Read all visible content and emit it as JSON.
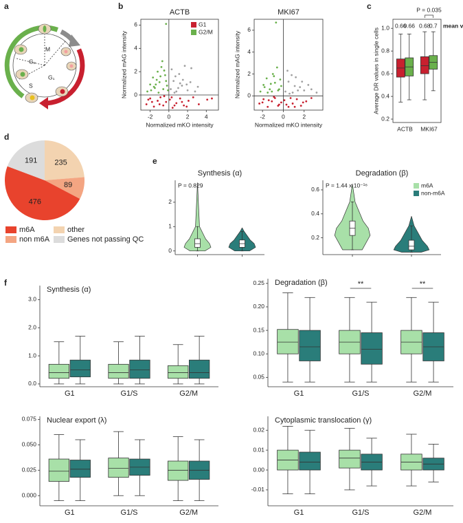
{
  "panel_labels": [
    "a",
    "b",
    "c",
    "d",
    "e",
    "f"
  ],
  "diagram": {
    "phases": [
      "M",
      "G₂",
      "S",
      "G₁"
    ]
  },
  "chart_data": [
    {
      "type": "scatter",
      "title": "ACTB",
      "x_label": "Normalized mKO intensity",
      "y_label": "Normalized mAG intensity",
      "xlim": [
        -3,
        5.3
      ],
      "ylim": [
        -1.3,
        6.5
      ],
      "xticks": [
        -2,
        0,
        2,
        4
      ],
      "yticks": [
        0,
        2,
        4,
        6
      ],
      "legend": "upper right",
      "series": [
        {
          "name": "G1",
          "color": "#c8202f",
          "x": [
            -2.4,
            -2.0,
            -1.6,
            -1.2,
            -0.9,
            -0.6,
            -0.3,
            0.1,
            0.4,
            0.8,
            1.2,
            1.6,
            2.1,
            2.6,
            3.2,
            4.1,
            -1.8,
            -0.5,
            0.6,
            1.9,
            -2.2,
            -1.0,
            0.3,
            1.4,
            4.6
          ],
          "values": [
            -0.8,
            -0.3,
            -1.0,
            -0.5,
            -0.2,
            -0.9,
            -0.6,
            -0.4,
            -1.1,
            -0.7,
            -0.3,
            -0.9,
            -0.5,
            -0.2,
            -0.8,
            -0.4,
            -0.6,
            -0.1,
            -0.9,
            -1.0,
            -0.4,
            -0.8,
            -0.2,
            -0.6,
            -0.3
          ]
        },
        {
          "name": "G2/M",
          "color": "#6ab04c",
          "x": [
            -2.3,
            -2.0,
            -1.7,
            -1.5,
            -1.2,
            -1.0,
            -0.8,
            -0.6,
            -0.4,
            -0.2,
            -1.9,
            -1.3,
            -0.7,
            -0.3,
            -1.6,
            -1.1,
            -0.5,
            -0.9,
            -1.4,
            -0.1,
            -0.3
          ],
          "values": [
            0.3,
            0.9,
            1.5,
            0.6,
            2.0,
            1.1,
            2.4,
            0.5,
            1.7,
            0.8,
            0.4,
            1.3,
            2.9,
            1.2,
            0.7,
            0.2,
            2.1,
            1.6,
            0.9,
            0.4,
            6.1
          ]
        },
        {
          "color": "#a0a0a0",
          "x": [
            0.2,
            0.5,
            0.8,
            1.1,
            1.4,
            1.7,
            2.0,
            2.3,
            0.3,
            0.7,
            1.0,
            1.5,
            1.9,
            2.4,
            0.6,
            1.2,
            3.1,
            2.8
          ],
          "values": [
            0.5,
            1.2,
            0.3,
            1.8,
            0.8,
            2.5,
            0.4,
            1.1,
            2.2,
            1.6,
            0.6,
            1.3,
            0.9,
            2.3,
            0.2,
            1.0,
            0.7,
            0.3
          ]
        }
      ]
    },
    {
      "type": "scatter",
      "title": "MKI67",
      "x_label": "Normalized mKO intensity",
      "y_label": "Normalized mAG intensity",
      "xlim": [
        -2.8,
        3.8
      ],
      "ylim": [
        -1.3,
        7
      ],
      "xticks": [
        -2,
        0,
        2
      ],
      "yticks": [
        0,
        2,
        4,
        6
      ],
      "series": [
        {
          "color": "#c8202f",
          "x": [
            -2.3,
            -1.9,
            -1.5,
            -1.1,
            -0.8,
            -0.5,
            -0.2,
            0.1,
            0.5,
            0.9,
            1.3,
            1.7,
            2.2,
            2.7,
            -2.0,
            -0.9,
            0.3,
            1.1,
            -1.4,
            0.7,
            1.9,
            -0.4
          ],
          "values": [
            -0.7,
            -0.3,
            -1.0,
            -0.5,
            -0.2,
            -0.9,
            -0.6,
            -0.4,
            -1.0,
            -0.7,
            -0.3,
            -0.9,
            -0.5,
            -0.2,
            -0.6,
            -0.1,
            -0.8,
            -1.0,
            -0.4,
            -0.2,
            -0.6,
            -0.8
          ]
        },
        {
          "color": "#6ab04c",
          "x": [
            -2.2,
            -1.9,
            -1.6,
            -1.3,
            -1.0,
            -0.8,
            -0.5,
            -0.3,
            -1.8,
            -1.2,
            -0.6,
            -0.2,
            -1.5,
            -0.9,
            -0.4,
            -1.1,
            -0.7
          ],
          "values": [
            0.4,
            1.0,
            1.6,
            0.6,
            2.0,
            1.2,
            0.5,
            1.5,
            0.8,
            1.1,
            2.6,
            0.9,
            0.3,
            1.8,
            0.6,
            0.4,
            6.7
          ]
        },
        {
          "color": "#a0a0a0",
          "x": [
            0.2,
            0.5,
            0.9,
            1.2,
            1.6,
            2.0,
            2.4,
            0.4,
            0.8,
            1.4,
            1.8,
            2.7,
            0.6,
            1.1,
            3.2
          ],
          "values": [
            0.4,
            1.3,
            0.3,
            1.7,
            0.8,
            0.5,
            1.0,
            2.3,
            1.9,
            0.5,
            1.3,
            0.6,
            0.2,
            0.9,
            0.3
          ]
        }
      ]
    },
    {
      "type": "box",
      "y_label": "Average DR values in single cells",
      "categories": [
        "ACTB",
        "MKI67"
      ],
      "ylim": [
        0.17,
        1.08
      ],
      "yticks": [
        0.2,
        0.4,
        0.6,
        0.8,
        {
          "value": 1,
          "label": "1.0"
        }
      ],
      "annotation": "P = 0.035",
      "means_label": "mean values",
      "series": [
        {
          "color": "#c8202f",
          "means": [
            0.66,
            0.68
          ],
          "boxes": [
            {
              "low": 0.35,
              "q1": 0.57,
              "median": 0.65,
              "q3": 0.73,
              "high": 0.95
            },
            {
              "low": 0.37,
              "q1": 0.6,
              "median": 0.67,
              "q3": 0.75,
              "high": 0.97
            }
          ]
        },
        {
          "color": "#6ab04c",
          "means": [
            0.66,
            0.7
          ],
          "boxes": [
            {
              "low": 0.37,
              "q1": 0.58,
              "median": 0.66,
              "q3": 0.74,
              "high": 0.95
            },
            {
              "low": 0.45,
              "q1": 0.64,
              "median": 0.7,
              "q3": 0.76,
              "high": 0.97
            }
          ]
        }
      ]
    },
    {
      "type": "pie",
      "categories": [
        "other",
        "non m6A",
        "m6A",
        "Genes not passing QC"
      ],
      "values": [
        235,
        89,
        476,
        191
      ],
      "colors": [
        "#f3d3b0",
        "#f4a582",
        "#e8432d",
        "#dcdcdc"
      ]
    },
    {
      "type": "violin",
      "title": "Synthesis (α)",
      "annotation": "P = 0.829",
      "ylim": [
        -0.15,
        2.9
      ],
      "yticks": [
        0,
        1,
        2
      ],
      "series": [
        {
          "color": "#a8e0a8",
          "extent": [
            0,
            2.8
          ],
          "box": {
            "low": 0,
            "q1": 0.15,
            "median": 0.3,
            "q3": 0.5,
            "high": 1.0
          }
        },
        {
          "color": "#2a7d7a",
          "extent": [
            0,
            0.95
          ],
          "box": {
            "low": 0,
            "q1": 0.15,
            "median": 0.3,
            "q3": 0.45,
            "high": 0.8
          }
        }
      ]
    },
    {
      "type": "violin",
      "title": "Degradation (β)",
      "annotation": "P = 1.44 x 10⁻¹⁶",
      "ylim": [
        0.06,
        0.68
      ],
      "yticks": [
        0.2,
        0.4,
        0.6
      ],
      "legend": "upper right",
      "series": [
        {
          "name": "m6A",
          "color": "#a8e0a8",
          "extent": [
            0.1,
            0.65
          ],
          "box": {
            "low": 0.1,
            "q1": 0.22,
            "median": 0.28,
            "q3": 0.34,
            "high": 0.5
          }
        },
        {
          "name": "non-m6A",
          "color": "#2a7d7a",
          "extent": [
            0.08,
            0.38
          ],
          "box": {
            "low": 0.08,
            "q1": 0.1,
            "median": 0.13,
            "q3": 0.18,
            "high": 0.3
          }
        }
      ]
    },
    {
      "type": "box",
      "title": "Synthesis (α)",
      "categories": [
        "G1",
        "G1/S",
        "G2/M"
      ],
      "ylim": [
        -0.1,
        3.5
      ],
      "yticks": [
        {
          "value": 0,
          "label": "0.0"
        },
        {
          "value": 1,
          "label": "1.0"
        },
        {
          "value": 2,
          "label": "2.0"
        },
        {
          "value": 3,
          "label": "3.0"
        }
      ],
      "series": [
        {
          "color": "#a8e0a8",
          "boxes": [
            {
              "low": 0,
              "q1": 0.2,
              "median": 0.4,
              "q3": 0.7,
              "high": 1.5
            },
            {
              "low": 0,
              "q1": 0.2,
              "median": 0.4,
              "q3": 0.7,
              "high": 1.5
            },
            {
              "low": 0,
              "q1": 0.2,
              "median": 0.4,
              "q3": 0.65,
              "high": 1.4
            }
          ]
        },
        {
          "color": "#2a7d7a",
          "boxes": [
            {
              "low": 0,
              "q1": 0.25,
              "median": 0.5,
              "q3": 0.85,
              "high": 1.7
            },
            {
              "low": 0,
              "q1": 0.2,
              "median": 0.5,
              "q3": 0.85,
              "high": 1.7
            },
            {
              "low": 0,
              "q1": 0.2,
              "median": 0.4,
              "q3": 0.85,
              "high": 1.7
            }
          ]
        }
      ]
    },
    {
      "type": "box",
      "title": "Degradation (β)",
      "categories": [
        "G1",
        "G1/S",
        "G2/M"
      ],
      "ylim": [
        0.03,
        0.26
      ],
      "yticks": [
        0.05,
        {
          "value": 0.1,
          "label": "0.10"
        },
        0.15,
        {
          "value": 0.2,
          "label": "0.20"
        },
        0.25
      ],
      "significance": [
        null,
        "**",
        "**"
      ],
      "series": [
        {
          "color": "#a8e0a8",
          "boxes": [
            {
              "low": 0.04,
              "q1": 0.1,
              "median": 0.125,
              "q3": 0.152,
              "high": 0.23
            },
            {
              "low": 0.04,
              "q1": 0.1,
              "median": 0.125,
              "q3": 0.15,
              "high": 0.22
            },
            {
              "low": 0.04,
              "q1": 0.1,
              "median": 0.125,
              "q3": 0.15,
              "high": 0.22
            }
          ]
        },
        {
          "color": "#2a7d7a",
          "boxes": [
            {
              "low": 0.04,
              "q1": 0.085,
              "median": 0.115,
              "q3": 0.15,
              "high": 0.22
            },
            {
              "low": 0.04,
              "q1": 0.078,
              "median": 0.11,
              "q3": 0.145,
              "high": 0.21
            },
            {
              "low": 0.04,
              "q1": 0.085,
              "median": 0.115,
              "q3": 0.145,
              "high": 0.21
            }
          ]
        }
      ]
    },
    {
      "type": "box",
      "title": "Nuclear export (λ)",
      "categories": [
        "G1",
        "G1/S",
        "G2/M"
      ],
      "ylim": [
        -0.01,
        0.078
      ],
      "yticks": [
        {
          "value": 0,
          "label": "0.000"
        },
        0.025,
        {
          "value": 0.05,
          "label": "0.050"
        },
        0.075
      ],
      "series": [
        {
          "color": "#a8e0a8",
          "boxes": [
            {
              "low": -0.005,
              "q1": 0.014,
              "median": 0.024,
              "q3": 0.036,
              "high": 0.06
            },
            {
              "low": 0,
              "q1": 0.018,
              "median": 0.027,
              "q3": 0.037,
              "high": 0.063
            },
            {
              "low": -0.005,
              "q1": 0.015,
              "median": 0.025,
              "q3": 0.034,
              "high": 0.058
            }
          ]
        },
        {
          "color": "#2a7d7a",
          "boxes": [
            {
              "low": -0.005,
              "q1": 0.018,
              "median": 0.026,
              "q3": 0.035,
              "high": 0.055
            },
            {
              "low": 0,
              "q1": 0.02,
              "median": 0.028,
              "q3": 0.036,
              "high": 0.055
            },
            {
              "low": -0.005,
              "q1": 0.016,
              "median": 0.025,
              "q3": 0.034,
              "high": 0.055
            }
          ]
        }
      ]
    },
    {
      "type": "box",
      "title": "Cytoplasmic translocation (γ)",
      "categories": [
        "G1",
        "G1/S",
        "G2/M"
      ],
      "ylim": [
        -0.018,
        0.027
      ],
      "yticks": [
        -0.01,
        {
          "value": 0,
          "label": "0.00"
        },
        0.01,
        0.02
      ],
      "series": [
        {
          "color": "#a8e0a8",
          "boxes": [
            {
              "low": -0.012,
              "q1": 0,
              "median": 0.005,
              "q3": 0.01,
              "high": 0.022
            },
            {
              "low": -0.01,
              "q1": 0.001,
              "median": 0.006,
              "q3": 0.01,
              "high": 0.021
            },
            {
              "low": -0.008,
              "q1": 0,
              "median": 0.004,
              "q3": 0.008,
              "high": 0.018
            }
          ]
        },
        {
          "color": "#2a7d7a",
          "boxes": [
            {
              "low": -0.012,
              "q1": 0,
              "median": 0.004,
              "q3": 0.009,
              "high": 0.02
            },
            {
              "low": -0.008,
              "q1": 0,
              "median": 0.004,
              "q3": 0.008,
              "high": 0.016
            },
            {
              "low": -0.006,
              "q1": 0,
              "median": 0.003,
              "q3": 0.006,
              "high": 0.013
            }
          ]
        }
      ]
    }
  ]
}
